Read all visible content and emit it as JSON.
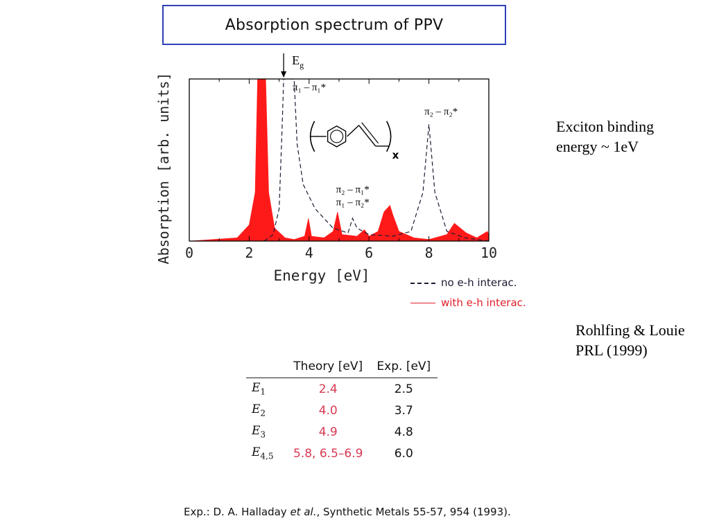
{
  "title": "Absorption spectrum of PPV",
  "chart_data": {
    "type": "line",
    "xlabel": "Energy [eV]",
    "ylabel": "Absorption [arb. units]",
    "xlim": [
      0,
      10
    ],
    "ylim": [
      0,
      1
    ],
    "x_ticks": [
      "0",
      "2",
      "4",
      "6",
      "8",
      "10"
    ],
    "series": [
      {
        "name": "no e-h interac.",
        "style": "dashed",
        "color": "#1a1a33",
        "points": [
          [
            2.5,
            0.0
          ],
          [
            2.8,
            0.04
          ],
          [
            3.0,
            0.2
          ],
          [
            3.1,
            0.7
          ],
          [
            3.15,
            1.0
          ],
          [
            3.5,
            1.0
          ],
          [
            3.6,
            0.6
          ],
          [
            3.8,
            0.35
          ],
          [
            4.2,
            0.2
          ],
          [
            4.8,
            0.08
          ],
          [
            5.3,
            0.05
          ],
          [
            5.45,
            0.14
          ],
          [
            5.6,
            0.08
          ],
          [
            6.0,
            0.04
          ],
          [
            6.8,
            0.03
          ],
          [
            7.4,
            0.06
          ],
          [
            7.8,
            0.3
          ],
          [
            8.0,
            0.72
          ],
          [
            8.2,
            0.3
          ],
          [
            8.6,
            0.06
          ],
          [
            9.2,
            0.02
          ],
          [
            10.0,
            0.0
          ]
        ]
      },
      {
        "name": "with e-h interac.",
        "style": "filled",
        "color": "#ff1a1a",
        "points": [
          [
            0.0,
            0.0
          ],
          [
            1.6,
            0.02
          ],
          [
            2.0,
            0.1
          ],
          [
            2.2,
            0.3
          ],
          [
            2.28,
            1.0
          ],
          [
            2.55,
            1.0
          ],
          [
            2.65,
            0.3
          ],
          [
            2.85,
            0.08
          ],
          [
            3.2,
            0.02
          ],
          [
            3.5,
            0.01
          ],
          [
            3.85,
            0.03
          ],
          [
            3.98,
            0.14
          ],
          [
            4.08,
            0.03
          ],
          [
            4.5,
            0.02
          ],
          [
            4.8,
            0.06
          ],
          [
            4.95,
            0.18
          ],
          [
            5.1,
            0.04
          ],
          [
            5.6,
            0.03
          ],
          [
            5.85,
            0.07
          ],
          [
            6.0,
            0.03
          ],
          [
            6.3,
            0.06
          ],
          [
            6.5,
            0.18
          ],
          [
            6.7,
            0.22
          ],
          [
            6.8,
            0.16
          ],
          [
            7.0,
            0.06
          ],
          [
            7.5,
            0.02
          ],
          [
            8.0,
            0.01
          ],
          [
            8.6,
            0.04
          ],
          [
            8.85,
            0.11
          ],
          [
            9.05,
            0.08
          ],
          [
            9.25,
            0.05
          ],
          [
            9.6,
            0.02
          ],
          [
            9.95,
            0.06
          ],
          [
            10.0,
            0.04
          ]
        ]
      }
    ],
    "annotations": [
      {
        "text": "E",
        "sub": "g",
        "x": 3.15,
        "marker": "arrow-down"
      },
      {
        "text": "π₁ – π₁*",
        "x": 3.45,
        "y": 0.93
      },
      {
        "text": "π₂ – π₂*",
        "x": 7.85,
        "y": 0.78
      },
      {
        "text": "π₂ – π₁*",
        "x": 4.9,
        "y": 0.3
      },
      {
        "text": "π₁ – π₂*",
        "x": 4.9,
        "y": 0.22
      },
      {
        "text": "x",
        "x": 6.45,
        "y": 0.62
      }
    ]
  },
  "legend": [
    {
      "label": "no e-h interac."
    },
    {
      "label": "with e-h interac."
    }
  ],
  "notes": {
    "exciton_line1": "Exciton binding",
    "exciton_line2": "energy ~ 1eV",
    "ref_line1": "Rohlfing & Louie",
    "ref_line2": "PRL (1999)"
  },
  "table": {
    "headers": [
      "",
      "Theory [eV]",
      "Exp. [eV]"
    ],
    "rows": [
      {
        "label": "E",
        "sub": "1",
        "theory": "2.4",
        "exp": "2.5"
      },
      {
        "label": "E",
        "sub": "2",
        "theory": "4.0",
        "exp": "3.7"
      },
      {
        "label": "E",
        "sub": "3",
        "theory": "4.9",
        "exp": "4.8"
      },
      {
        "label": "E",
        "sub": "4,5",
        "theory": "5.8, 6.5–6.9",
        "exp": "6.0"
      }
    ]
  },
  "citation": {
    "prefix": "Exp.: D. A. Halladay ",
    "italic": "et al.",
    "suffix": ", Synthetic Metals 55-57, 954 (1993)."
  }
}
